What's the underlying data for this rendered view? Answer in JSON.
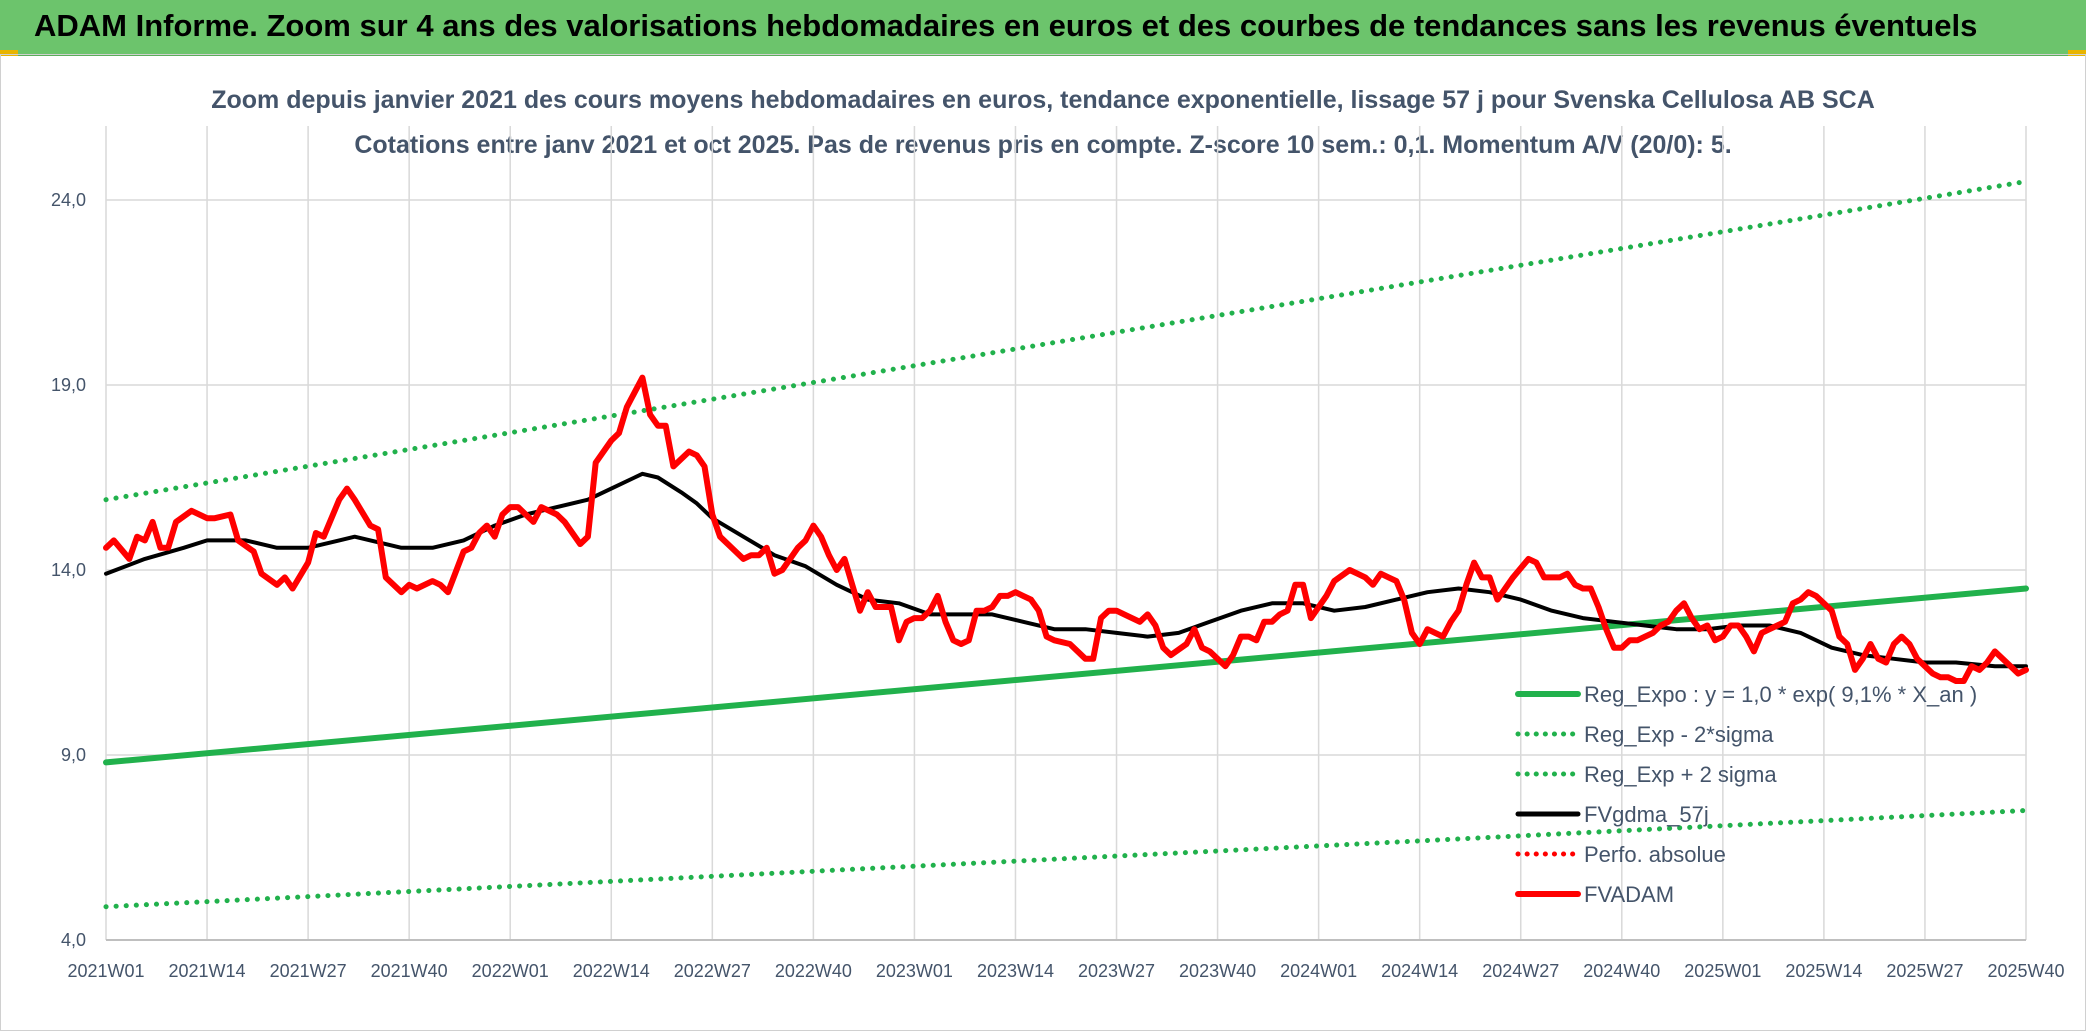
{
  "banner": {
    "title": "ADAM Informe. Zoom sur 4 ans des valorisations hebdomadaires en euros et des courbes de tendances sans les revenus éventuels"
  },
  "chart_data": {
    "type": "line",
    "title": "Zoom depuis janvier 2021 des cours moyens hebdomadaires en euros, tendance exponentielle, lissage 57 j pour Svenska Cellulosa AB SCA",
    "subtitle": "Cotations entre janv 2021 et oct 2025. Pas de revenus pris en compte. Z-score 10 sem.: 0,1. Momentum A/V (20/0): 5.",
    "xlabel": "",
    "ylabel": "",
    "ylim": [
      4,
      26
    ],
    "y_ticks": [
      "4,0",
      "9,0",
      "14,0",
      "19,0",
      "24,0"
    ],
    "y_tick_values": [
      4,
      9,
      14,
      19,
      24
    ],
    "x_ticks": [
      "2021W01",
      "2021W14",
      "2021W27",
      "2021W40",
      "2022W01",
      "2022W14",
      "2022W27",
      "2022W40",
      "2023W01",
      "2023W14",
      "2023W27",
      "2023W40",
      "2024W01",
      "2024W14",
      "2024W27",
      "2024W40",
      "2025W01",
      "2025W14",
      "2025W27",
      "2025W40"
    ],
    "x_range_weeks": [
      0,
      247
    ],
    "grid": true,
    "legend_position": "bottom-right",
    "series": [
      {
        "name": "Reg_Expo : y = 1,0 * exp( 9,1% *  X_an )",
        "color": "#21b14c",
        "style": "solid",
        "values": [
          [
            0,
            8.8
          ],
          [
            247,
            13.5
          ]
        ]
      },
      {
        "name": "Reg_Exp - 2*sigma",
        "color": "#21b14c",
        "style": "dotted",
        "values": [
          [
            0,
            4.9
          ],
          [
            247,
            7.5
          ]
        ]
      },
      {
        "name": "Reg_Exp + 2 sigma",
        "color": "#21b14c",
        "style": "dotted",
        "values": [
          [
            0,
            15.9
          ],
          [
            247,
            24.5
          ]
        ]
      },
      {
        "name": "FVgdma_57j",
        "color": "#000000",
        "style": "solid",
        "values": [
          [
            0,
            13.9
          ],
          [
            5,
            14.3
          ],
          [
            10,
            14.6
          ],
          [
            13,
            14.8
          ],
          [
            18,
            14.8
          ],
          [
            22,
            14.6
          ],
          [
            26,
            14.6
          ],
          [
            30,
            14.8
          ],
          [
            32,
            14.9
          ],
          [
            36,
            14.7
          ],
          [
            38,
            14.6
          ],
          [
            42,
            14.6
          ],
          [
            46,
            14.8
          ],
          [
            50,
            15.2
          ],
          [
            54,
            15.5
          ],
          [
            58,
            15.7
          ],
          [
            62,
            15.9
          ],
          [
            65,
            16.2
          ],
          [
            68,
            16.5
          ],
          [
            69,
            16.6
          ],
          [
            71,
            16.5
          ],
          [
            74,
            16.1
          ],
          [
            76,
            15.8
          ],
          [
            78,
            15.4
          ],
          [
            82,
            14.9
          ],
          [
            86,
            14.4
          ],
          [
            90,
            14.1
          ],
          [
            94,
            13.6
          ],
          [
            98,
            13.2
          ],
          [
            102,
            13.1
          ],
          [
            106,
            12.8
          ],
          [
            110,
            12.8
          ],
          [
            114,
            12.8
          ],
          [
            118,
            12.6
          ],
          [
            122,
            12.4
          ],
          [
            126,
            12.4
          ],
          [
            130,
            12.3
          ],
          [
            134,
            12.2
          ],
          [
            138,
            12.3
          ],
          [
            142,
            12.6
          ],
          [
            146,
            12.9
          ],
          [
            150,
            13.1
          ],
          [
            154,
            13.1
          ],
          [
            158,
            12.9
          ],
          [
            162,
            13.0
          ],
          [
            166,
            13.2
          ],
          [
            170,
            13.4
          ],
          [
            174,
            13.5
          ],
          [
            178,
            13.4
          ],
          [
            182,
            13.2
          ],
          [
            186,
            12.9
          ],
          [
            190,
            12.7
          ],
          [
            194,
            12.6
          ],
          [
            198,
            12.5
          ],
          [
            202,
            12.4
          ],
          [
            206,
            12.4
          ],
          [
            210,
            12.5
          ],
          [
            214,
            12.5
          ],
          [
            218,
            12.3
          ],
          [
            222,
            11.9
          ],
          [
            226,
            11.7
          ],
          [
            230,
            11.6
          ],
          [
            234,
            11.5
          ],
          [
            238,
            11.5
          ],
          [
            243,
            11.4
          ],
          [
            247,
            11.4
          ]
        ]
      },
      {
        "name": "Perfo. absolue",
        "color": "#ff0000",
        "style": "dotted",
        "values": []
      },
      {
        "name": "FVADAM",
        "color": "#ff0000",
        "style": "solid",
        "values": [
          [
            0,
            14.6
          ],
          [
            1,
            14.8
          ],
          [
            3,
            14.3
          ],
          [
            4,
            14.9
          ],
          [
            5,
            14.8
          ],
          [
            6,
            15.3
          ],
          [
            7,
            14.6
          ],
          [
            8,
            14.6
          ],
          [
            9,
            15.3
          ],
          [
            11,
            15.6
          ],
          [
            13,
            15.4
          ],
          [
            14,
            15.4
          ],
          [
            16,
            15.5
          ],
          [
            17,
            14.8
          ],
          [
            19,
            14.5
          ],
          [
            20,
            13.9
          ],
          [
            22,
            13.6
          ],
          [
            23,
            13.8
          ],
          [
            24,
            13.5
          ],
          [
            26,
            14.2
          ],
          [
            27,
            15.0
          ],
          [
            28,
            14.9
          ],
          [
            30,
            15.9
          ],
          [
            31,
            16.2
          ],
          [
            32,
            15.9
          ],
          [
            34,
            15.2
          ],
          [
            35,
            15.1
          ],
          [
            36,
            13.8
          ],
          [
            38,
            13.4
          ],
          [
            39,
            13.6
          ],
          [
            40,
            13.5
          ],
          [
            42,
            13.7
          ],
          [
            43,
            13.6
          ],
          [
            44,
            13.4
          ],
          [
            46,
            14.5
          ],
          [
            47,
            14.6
          ],
          [
            48,
            15.0
          ],
          [
            49,
            15.2
          ],
          [
            50,
            14.9
          ],
          [
            51,
            15.5
          ],
          [
            52,
            15.7
          ],
          [
            53,
            15.7
          ],
          [
            55,
            15.3
          ],
          [
            56,
            15.7
          ],
          [
            58,
            15.5
          ],
          [
            59,
            15.3
          ],
          [
            61,
            14.7
          ],
          [
            62,
            14.9
          ],
          [
            63,
            16.9
          ],
          [
            65,
            17.5
          ],
          [
            66,
            17.7
          ],
          [
            67,
            18.4
          ],
          [
            69,
            19.2
          ],
          [
            70,
            18.2
          ],
          [
            71,
            17.9
          ],
          [
            72,
            17.9
          ],
          [
            73,
            16.8
          ],
          [
            75,
            17.2
          ],
          [
            76,
            17.1
          ],
          [
            77,
            16.8
          ],
          [
            78,
            15.5
          ],
          [
            79,
            14.9
          ],
          [
            81,
            14.5
          ],
          [
            82,
            14.3
          ],
          [
            83,
            14.4
          ],
          [
            84,
            14.4
          ],
          [
            85,
            14.6
          ],
          [
            86,
            13.9
          ],
          [
            87,
            14.0
          ],
          [
            89,
            14.6
          ],
          [
            90,
            14.8
          ],
          [
            91,
            15.2
          ],
          [
            92,
            14.9
          ],
          [
            93,
            14.4
          ],
          [
            94,
            14.0
          ],
          [
            95,
            14.3
          ],
          [
            97,
            12.9
          ],
          [
            98,
            13.4
          ],
          [
            99,
            13.0
          ],
          [
            101,
            13.0
          ],
          [
            102,
            12.1
          ],
          [
            103,
            12.6
          ],
          [
            104,
            12.7
          ],
          [
            105,
            12.7
          ],
          [
            106,
            12.9
          ],
          [
            107,
            13.3
          ],
          [
            108,
            12.6
          ],
          [
            109,
            12.1
          ],
          [
            110,
            12.0
          ],
          [
            111,
            12.1
          ],
          [
            112,
            12.9
          ],
          [
            113,
            12.9
          ],
          [
            114,
            13.0
          ],
          [
            115,
            13.3
          ],
          [
            116,
            13.3
          ],
          [
            117,
            13.4
          ],
          [
            118,
            13.3
          ],
          [
            119,
            13.2
          ],
          [
            120,
            12.9
          ],
          [
            121,
            12.2
          ],
          [
            122,
            12.1
          ],
          [
            124,
            12.0
          ],
          [
            125,
            11.8
          ],
          [
            126,
            11.6
          ],
          [
            127,
            11.6
          ],
          [
            128,
            12.7
          ],
          [
            129,
            12.9
          ],
          [
            130,
            12.9
          ],
          [
            131,
            12.8
          ],
          [
            133,
            12.6
          ],
          [
            134,
            12.8
          ],
          [
            135,
            12.5
          ],
          [
            136,
            11.9
          ],
          [
            137,
            11.7
          ],
          [
            139,
            12.0
          ],
          [
            140,
            12.4
          ],
          [
            141,
            11.9
          ],
          [
            142,
            11.8
          ],
          [
            143,
            11.6
          ],
          [
            144,
            11.4
          ],
          [
            145,
            11.7
          ],
          [
            146,
            12.2
          ],
          [
            147,
            12.2
          ],
          [
            148,
            12.1
          ],
          [
            149,
            12.6
          ],
          [
            150,
            12.6
          ],
          [
            151,
            12.8
          ],
          [
            152,
            12.9
          ],
          [
            153,
            13.6
          ],
          [
            154,
            13.6
          ],
          [
            155,
            12.7
          ],
          [
            157,
            13.3
          ],
          [
            158,
            13.7
          ],
          [
            160,
            14.0
          ],
          [
            161,
            13.9
          ],
          [
            162,
            13.8
          ],
          [
            163,
            13.6
          ],
          [
            164,
            13.9
          ],
          [
            165,
            13.8
          ],
          [
            166,
            13.7
          ],
          [
            167,
            13.2
          ],
          [
            168,
            12.3
          ],
          [
            169,
            12.0
          ],
          [
            170,
            12.4
          ],
          [
            171,
            12.3
          ],
          [
            172,
            12.2
          ],
          [
            173,
            12.6
          ],
          [
            174,
            12.9
          ],
          [
            175,
            13.6
          ],
          [
            176,
            14.2
          ],
          [
            177,
            13.8
          ],
          [
            178,
            13.8
          ],
          [
            179,
            13.2
          ],
          [
            181,
            13.8
          ],
          [
            183,
            14.3
          ],
          [
            184,
            14.2
          ],
          [
            185,
            13.8
          ],
          [
            186,
            13.8
          ],
          [
            187,
            13.8
          ],
          [
            188,
            13.9
          ],
          [
            189,
            13.6
          ],
          [
            190,
            13.5
          ],
          [
            191,
            13.5
          ],
          [
            192,
            13.0
          ],
          [
            193,
            12.4
          ],
          [
            194,
            11.9
          ],
          [
            195,
            11.9
          ],
          [
            196,
            12.1
          ],
          [
            197,
            12.1
          ],
          [
            198,
            12.2
          ],
          [
            199,
            12.3
          ],
          [
            200,
            12.5
          ],
          [
            201,
            12.6
          ],
          [
            202,
            12.9
          ],
          [
            203,
            13.1
          ],
          [
            204,
            12.7
          ],
          [
            205,
            12.4
          ],
          [
            206,
            12.5
          ],
          [
            207,
            12.1
          ],
          [
            208,
            12.2
          ],
          [
            209,
            12.5
          ],
          [
            210,
            12.5
          ],
          [
            211,
            12.2
          ],
          [
            212,
            11.8
          ],
          [
            213,
            12.3
          ],
          [
            214,
            12.4
          ],
          [
            215,
            12.5
          ],
          [
            216,
            12.6
          ],
          [
            217,
            13.1
          ],
          [
            218,
            13.2
          ],
          [
            219,
            13.4
          ],
          [
            220,
            13.3
          ],
          [
            221,
            13.1
          ],
          [
            222,
            12.9
          ],
          [
            223,
            12.2
          ],
          [
            224,
            12.0
          ],
          [
            225,
            11.3
          ],
          [
            226,
            11.6
          ],
          [
            227,
            12.0
          ],
          [
            228,
            11.6
          ],
          [
            229,
            11.5
          ],
          [
            230,
            12.0
          ],
          [
            231,
            12.2
          ],
          [
            232,
            12.0
          ],
          [
            233,
            11.6
          ],
          [
            234,
            11.4
          ],
          [
            235,
            11.2
          ],
          [
            236,
            11.1
          ],
          [
            237,
            11.1
          ],
          [
            238,
            11.0
          ],
          [
            239,
            11.0
          ],
          [
            240,
            11.4
          ],
          [
            241,
            11.3
          ],
          [
            242,
            11.5
          ],
          [
            243,
            11.8
          ],
          [
            244,
            11.6
          ],
          [
            245,
            11.4
          ],
          [
            246,
            11.2
          ],
          [
            247,
            11.3
          ]
        ]
      }
    ]
  }
}
